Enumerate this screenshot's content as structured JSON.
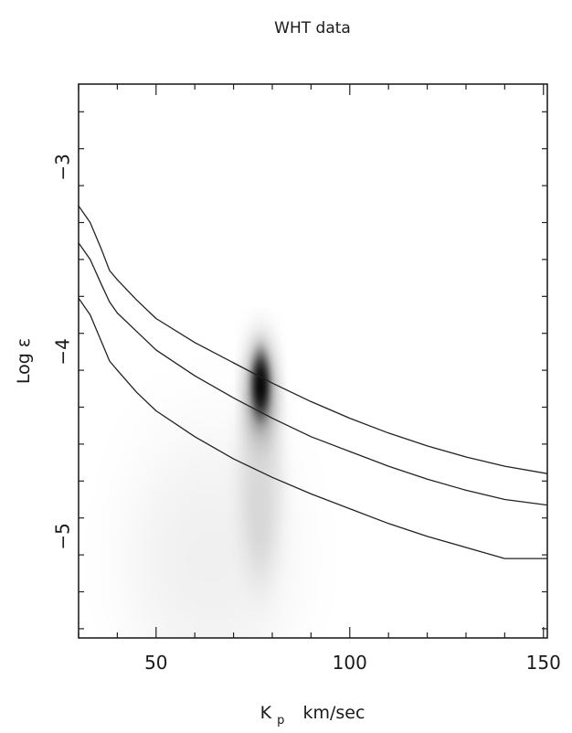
{
  "chart_data": {
    "type": "heatmap",
    "title": "WHT data",
    "xlabel": {
      "main": "K",
      "subscript": "p",
      "unit": "km/sec"
    },
    "ylabel": "Log ε",
    "xlim": [
      30,
      151
    ],
    "ylim": [
      -5.55,
      -2.55
    ],
    "x_ticks": [
      50,
      100,
      150
    ],
    "x_tick_labels": [
      "50",
      "100",
      "150"
    ],
    "y_ticks": [
      -5,
      -4,
      -3
    ],
    "y_tick_labels": [
      "−5",
      "−4",
      "−3"
    ],
    "grid": false,
    "colormap": "grayscale (white = low, black = high)",
    "peak": {
      "x": 77,
      "y": -4.2
    },
    "series": [
      {
        "x": [
          30,
          33,
          36,
          38,
          40,
          45,
          50,
          60,
          70,
          80,
          90,
          100,
          110,
          120,
          130,
          140,
          151
        ],
        "y": [
          -3.21,
          -3.3,
          -3.45,
          -3.56,
          -3.61,
          -3.72,
          -3.82,
          -3.95,
          -4.06,
          -4.17,
          -4.27,
          -4.36,
          -4.44,
          -4.51,
          -4.57,
          -4.62,
          -4.66
        ]
      },
      {
        "x": [
          30,
          33,
          36,
          38,
          40,
          45,
          50,
          60,
          70,
          80,
          90,
          100,
          110,
          120,
          130,
          140,
          151
        ],
        "y": [
          -3.41,
          -3.5,
          -3.64,
          -3.73,
          -3.79,
          -3.89,
          -3.99,
          -4.13,
          -4.25,
          -4.36,
          -4.46,
          -4.54,
          -4.62,
          -4.69,
          -4.75,
          -4.8,
          -4.83
        ]
      },
      {
        "x": [
          30,
          33,
          36,
          38,
          40,
          45,
          50,
          60,
          70,
          80,
          90,
          100,
          110,
          120,
          130,
          140,
          151
        ],
        "y": [
          -3.71,
          -3.8,
          -3.95,
          -4.05,
          -4.1,
          -4.22,
          -4.32,
          -4.46,
          -4.58,
          -4.68,
          -4.77,
          -4.85,
          -4.93,
          -5.0,
          -5.06,
          -5.12,
          -5.12
        ]
      }
    ]
  }
}
